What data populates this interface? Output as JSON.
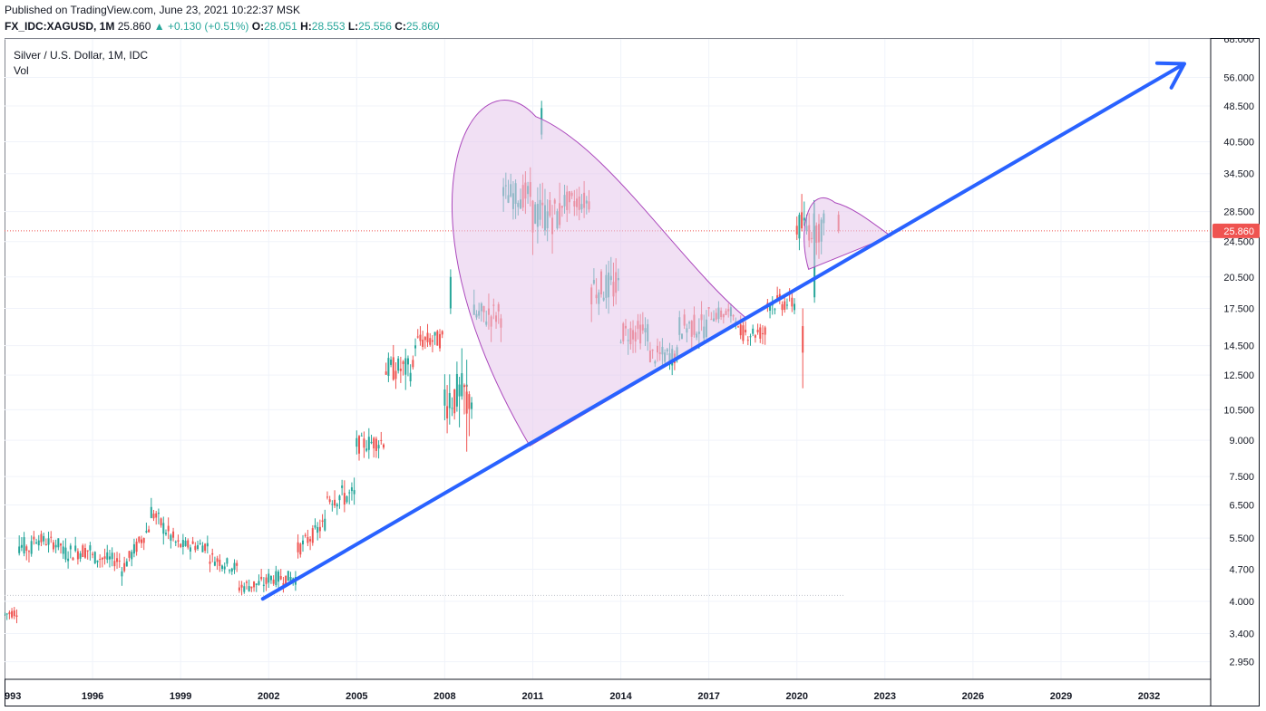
{
  "header": {
    "publish": "Published on TradingView.com, June 23, 2021 10:22:37 MSK",
    "symbol": "FX_IDC:XAGUSD, 1M",
    "last": "25.860",
    "change": "+0.130 (+0.51%)",
    "o_label": "O:",
    "o": "28.051",
    "h_label": "H:",
    "h": "28.553",
    "l_label": "L:",
    "l": "25.556",
    "c_label": "C:",
    "c": "25.860"
  },
  "legend": {
    "title": "Silver / U.S. Dollar, 1M, IDC",
    "vol": "Vol"
  },
  "colors": {
    "up": "#26a69a",
    "down": "#ef5350",
    "trendline": "#2962ff",
    "shape_fill": "#e6c7eb",
    "shape_stroke": "#ab47bc",
    "price_tag": "#ef5350"
  },
  "chart_data": {
    "type": "candlestick",
    "title": "Silver / U.S. Dollar, 1M, IDC",
    "scale": "log",
    "y_ticks": [
      "68.000",
      "56.000",
      "48.500",
      "40.500",
      "34.500",
      "28.500",
      "24.500",
      "20.500",
      "17.500",
      "14.500",
      "12.500",
      "10.500",
      "9.000",
      "7.500",
      "6.500",
      "5.500",
      "4.700",
      "4.000",
      "3.400",
      "2.950"
    ],
    "x_ticks": [
      "993",
      "1996",
      "1999",
      "2002",
      "2005",
      "2008",
      "2011",
      "2014",
      "2017",
      "2020",
      "2023",
      "2026",
      "2029",
      "2032"
    ],
    "last_price": "25.860",
    "ylim": [
      2.7,
      68
    ],
    "xlim": [
      1993.0,
      2034.1
    ],
    "grid": true,
    "candles_approx": [
      {
        "x": 1993.0,
        "o": 3.7,
        "h": 3.9,
        "l": 3.6,
        "c": 3.75
      },
      {
        "x": 1993.5,
        "o": 3.8,
        "h": 5.4,
        "l": 3.6,
        "c": 5.3
      },
      {
        "x": 1994.0,
        "o": 5.2,
        "h": 5.7,
        "l": 4.9,
        "c": 5.5
      },
      {
        "x": 1995.0,
        "o": 5.3,
        "h": 5.9,
        "l": 4.5,
        "c": 5.1
      },
      {
        "x": 1996.0,
        "o": 5.2,
        "h": 5.8,
        "l": 4.9,
        "c": 5.0
      },
      {
        "x": 1997.0,
        "o": 4.9,
        "h": 5.3,
        "l": 4.3,
        "c": 4.7
      },
      {
        "x": 1998.0,
        "o": 5.9,
        "h": 7.3,
        "l": 5.5,
        "c": 6.3
      },
      {
        "x": 1999.0,
        "o": 5.2,
        "h": 5.7,
        "l": 4.9,
        "c": 5.3
      },
      {
        "x": 2000.0,
        "o": 5.3,
        "h": 5.7,
        "l": 4.9,
        "c": 5.0
      },
      {
        "x": 2001.0,
        "o": 4.7,
        "h": 4.9,
        "l": 4.1,
        "c": 4.3
      },
      {
        "x": 2002.0,
        "o": 4.4,
        "h": 5.0,
        "l": 4.2,
        "c": 4.5
      },
      {
        "x": 2003.0,
        "o": 4.5,
        "h": 5.5,
        "l": 4.4,
        "c": 5.2
      },
      {
        "x": 2004.0,
        "o": 6.0,
        "h": 8.5,
        "l": 5.5,
        "c": 6.8
      },
      {
        "x": 2005.0,
        "o": 6.8,
        "h": 9.0,
        "l": 6.5,
        "c": 8.8
      },
      {
        "x": 2006.0,
        "o": 9.0,
        "h": 15.2,
        "l": 8.9,
        "c": 12.9
      },
      {
        "x": 2007.0,
        "o": 12.9,
        "h": 15.8,
        "l": 11.5,
        "c": 14.8
      },
      {
        "x": 2008.0,
        "o": 15.0,
        "h": 21.3,
        "l": 8.5,
        "c": 11.3
      },
      {
        "x": 2009.0,
        "o": 11.3,
        "h": 19.5,
        "l": 10.5,
        "c": 16.9
      },
      {
        "x": 2010.0,
        "o": 17.0,
        "h": 31.0,
        "l": 14.6,
        "c": 30.9
      },
      {
        "x": 2011.0,
        "o": 31.0,
        "h": 49.8,
        "l": 26.0,
        "c": 28.2
      },
      {
        "x": 2012.0,
        "o": 28.0,
        "h": 37.5,
        "l": 26.1,
        "c": 30.0
      },
      {
        "x": 2013.0,
        "o": 30.0,
        "h": 32.5,
        "l": 18.2,
        "c": 19.5
      },
      {
        "x": 2014.0,
        "o": 19.5,
        "h": 22.2,
        "l": 15.3,
        "c": 15.5
      },
      {
        "x": 2015.0,
        "o": 15.6,
        "h": 18.5,
        "l": 13.7,
        "c": 13.8
      },
      {
        "x": 2016.0,
        "o": 13.8,
        "h": 21.2,
        "l": 13.6,
        "c": 16.0
      },
      {
        "x": 2017.0,
        "o": 16.0,
        "h": 18.7,
        "l": 15.2,
        "c": 17.0
      },
      {
        "x": 2018.0,
        "o": 17.0,
        "h": 17.7,
        "l": 13.9,
        "c": 15.5
      },
      {
        "x": 2019.0,
        "o": 15.5,
        "h": 19.7,
        "l": 14.3,
        "c": 18.0
      },
      {
        "x": 2020.0,
        "o": 18.0,
        "h": 29.8,
        "l": 11.7,
        "c": 26.4
      },
      {
        "x": 2021.0,
        "o": 26.4,
        "h": 30.1,
        "l": 23.8,
        "c": 25.86
      }
    ],
    "drawings": {
      "trendline": {
        "from": {
          "x": 2001.8,
          "y": 4.05
        },
        "to": {
          "x": 2033.2,
          "y": 60.0
        },
        "arrow": true
      },
      "curved_shapes": 2
    }
  }
}
